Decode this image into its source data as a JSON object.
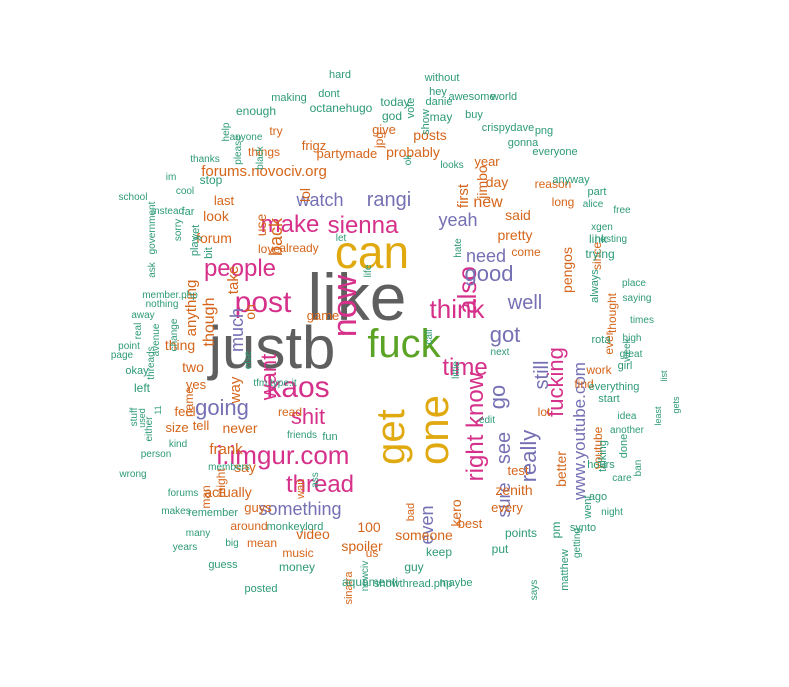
{
  "colors": {
    "gray": "#5f5f5f",
    "pink": "#d6318a",
    "orange": "#d5651a",
    "teal": "#2e9a78",
    "purple": "#7570b3",
    "gold": "#e0a910",
    "green": "#5aa324",
    "background": "#ffffff"
  },
  "words": [
    {
      "text": "like",
      "color": "gray"
    },
    {
      "text": "justb",
      "color": "gray"
    },
    {
      "text": "can",
      "color": "gold"
    },
    {
      "text": "get",
      "color": "gold"
    },
    {
      "text": "one",
      "color": "gold"
    },
    {
      "text": "fuck",
      "color": "green"
    },
    {
      "text": "now",
      "color": "pink"
    },
    {
      "text": "post",
      "color": "pink"
    },
    {
      "text": "kaos",
      "color": "pink"
    },
    {
      "text": "people",
      "color": "pink"
    },
    {
      "text": "make",
      "color": "pink"
    },
    {
      "text": "sienna",
      "color": "pink"
    },
    {
      "text": "also",
      "color": "pink"
    },
    {
      "text": "think",
      "color": "pink"
    },
    {
      "text": "time",
      "color": "pink"
    },
    {
      "text": "know",
      "color": "pink"
    },
    {
      "text": "right",
      "color": "pink"
    },
    {
      "text": "shit",
      "color": "pink"
    },
    {
      "text": "want",
      "color": "pink"
    },
    {
      "text": "thread",
      "color": "pink"
    },
    {
      "text": "i.imgur.com",
      "color": "pink"
    },
    {
      "text": "fucking",
      "color": "pink"
    },
    {
      "text": "going",
      "color": "purple"
    },
    {
      "text": "good",
      "color": "purple"
    },
    {
      "text": "got",
      "color": "purple"
    },
    {
      "text": "well",
      "color": "purple"
    },
    {
      "text": "really",
      "color": "purple"
    },
    {
      "text": "still",
      "color": "purple"
    },
    {
      "text": "see",
      "color": "purple"
    },
    {
      "text": "go",
      "color": "purple"
    },
    {
      "text": "watch",
      "color": "purple"
    },
    {
      "text": "rangi",
      "color": "purple"
    },
    {
      "text": "yeah",
      "color": "purple"
    },
    {
      "text": "need",
      "color": "purple"
    },
    {
      "text": "something",
      "color": "purple"
    },
    {
      "text": "even",
      "color": "purple"
    },
    {
      "text": "sure",
      "color": "purple"
    },
    {
      "text": "much",
      "color": "purple"
    },
    {
      "text": "www.youtube.com",
      "color": "purple"
    },
    {
      "text": "forums.novociv.org",
      "color": "orange"
    },
    {
      "text": "back",
      "color": "orange"
    },
    {
      "text": "use",
      "color": "orange"
    },
    {
      "text": "lol",
      "color": "orange"
    },
    {
      "text": "first",
      "color": "orange"
    },
    {
      "text": "new",
      "color": "orange"
    },
    {
      "text": "day",
      "color": "orange"
    },
    {
      "text": "jimbo",
      "color": "orange"
    },
    {
      "text": "said",
      "color": "orange"
    },
    {
      "text": "pretty",
      "color": "orange"
    },
    {
      "text": "pengos",
      "color": "orange"
    },
    {
      "text": "forum",
      "color": "orange"
    },
    {
      "text": "look",
      "color": "orange"
    },
    {
      "text": "last",
      "color": "orange"
    },
    {
      "text": "take",
      "color": "orange"
    },
    {
      "text": "oh",
      "color": "orange"
    },
    {
      "text": "though",
      "color": "orange"
    },
    {
      "text": "anything",
      "color": "orange"
    },
    {
      "text": "way",
      "color": "orange"
    },
    {
      "text": "thing",
      "color": "orange"
    },
    {
      "text": "two",
      "color": "orange"
    },
    {
      "text": "yes",
      "color": "orange"
    },
    {
      "text": "never",
      "color": "orange"
    },
    {
      "text": "frank",
      "color": "orange"
    },
    {
      "text": "say",
      "color": "orange"
    },
    {
      "text": "actually",
      "color": "orange"
    },
    {
      "text": "guys",
      "color": "orange"
    },
    {
      "text": "video",
      "color": "orange"
    },
    {
      "text": "100",
      "color": "orange"
    },
    {
      "text": "spoiler",
      "color": "orange"
    },
    {
      "text": "someone",
      "color": "orange"
    },
    {
      "text": "best",
      "color": "orange"
    },
    {
      "text": "kero",
      "color": "orange"
    },
    {
      "text": "zenith",
      "color": "orange"
    },
    {
      "text": "every",
      "color": "orange"
    },
    {
      "text": "better",
      "color": "orange"
    },
    {
      "text": "test",
      "color": "orange"
    },
    {
      "text": "lot",
      "color": "orange"
    },
    {
      "text": "find",
      "color": "orange"
    },
    {
      "text": "work",
      "color": "orange"
    },
    {
      "text": "ever",
      "color": "orange"
    },
    {
      "text": "youtube",
      "color": "orange"
    },
    {
      "text": "thought",
      "color": "orange"
    },
    {
      "text": "since",
      "color": "orange"
    },
    {
      "text": "long",
      "color": "orange"
    },
    {
      "text": "reason",
      "color": "orange"
    },
    {
      "text": "year",
      "color": "orange"
    },
    {
      "text": "posts",
      "color": "orange"
    },
    {
      "text": "probably",
      "color": "orange"
    },
    {
      "text": "made",
      "color": "orange"
    },
    {
      "text": "give",
      "color": "orange"
    },
    {
      "text": "party",
      "color": "orange"
    },
    {
      "text": "frigz",
      "color": "orange"
    },
    {
      "text": "things",
      "color": "orange"
    },
    {
      "text": "game",
      "color": "orange"
    },
    {
      "text": "feel",
      "color": "orange"
    },
    {
      "text": "size",
      "color": "orange"
    },
    {
      "text": "tell",
      "color": "orange"
    },
    {
      "text": "man",
      "color": "orange"
    },
    {
      "text": "might",
      "color": "orange"
    },
    {
      "text": "name",
      "color": "orange"
    },
    {
      "text": "around",
      "color": "orange"
    },
    {
      "text": "mean",
      "color": "orange"
    },
    {
      "text": "music",
      "color": "orange"
    },
    {
      "text": "come",
      "color": "orange"
    },
    {
      "text": "jpg",
      "color": "orange"
    },
    {
      "text": "bad",
      "color": "orange"
    },
    {
      "text": "wait",
      "color": "orange"
    },
    {
      "text": "us",
      "color": "orange"
    },
    {
      "text": "sinatra",
      "color": "orange"
    },
    {
      "text": "already",
      "color": "orange"
    },
    {
      "text": "love",
      "color": "orange"
    },
    {
      "text": "read",
      "color": "orange"
    },
    {
      "text": "try",
      "color": "orange"
    },
    {
      "text": "enough",
      "color": "teal"
    },
    {
      "text": "octanehugo",
      "color": "teal"
    },
    {
      "text": "dont",
      "color": "teal"
    },
    {
      "text": "making",
      "color": "teal"
    },
    {
      "text": "today",
      "color": "teal"
    },
    {
      "text": "god",
      "color": "teal"
    },
    {
      "text": "vote",
      "color": "teal"
    },
    {
      "text": "danie",
      "color": "teal"
    },
    {
      "text": "may",
      "color": "teal"
    },
    {
      "text": "hey",
      "color": "teal"
    },
    {
      "text": "show",
      "color": "teal"
    },
    {
      "text": "without",
      "color": "teal"
    },
    {
      "text": "awesome",
      "color": "teal"
    },
    {
      "text": "world",
      "color": "teal"
    },
    {
      "text": "buy",
      "color": "teal"
    },
    {
      "text": "crispydave",
      "color": "teal"
    },
    {
      "text": "gonna",
      "color": "teal"
    },
    {
      "text": "png",
      "color": "teal"
    },
    {
      "text": "everyone",
      "color": "teal"
    },
    {
      "text": "anyway",
      "color": "teal"
    },
    {
      "text": "part",
      "color": "teal"
    },
    {
      "text": "alice",
      "color": "teal"
    },
    {
      "text": "free",
      "color": "teal"
    },
    {
      "text": "xgen",
      "color": "teal"
    },
    {
      "text": "link",
      "color": "teal"
    },
    {
      "text": "trying",
      "color": "teal"
    },
    {
      "text": "always",
      "color": "teal"
    },
    {
      "text": "place",
      "color": "teal"
    },
    {
      "text": "saying",
      "color": "teal"
    },
    {
      "text": "times",
      "color": "teal"
    },
    {
      "text": "high",
      "color": "teal"
    },
    {
      "text": "great",
      "color": "teal"
    },
    {
      "text": "week",
      "color": "teal"
    },
    {
      "text": "girl",
      "color": "teal"
    },
    {
      "text": "everything",
      "color": "teal"
    },
    {
      "text": "start",
      "color": "teal"
    },
    {
      "text": "done",
      "color": "teal"
    },
    {
      "text": "idea",
      "color": "teal"
    },
    {
      "text": "another",
      "color": "teal"
    },
    {
      "text": "ban",
      "color": "teal"
    },
    {
      "text": "care",
      "color": "teal"
    },
    {
      "text": "hours",
      "color": "teal"
    },
    {
      "text": "ago",
      "color": "teal"
    },
    {
      "text": "night",
      "color": "teal"
    },
    {
      "text": "talking",
      "color": "teal"
    },
    {
      "text": "went",
      "color": "teal"
    },
    {
      "text": "synto",
      "color": "teal"
    },
    {
      "text": "getting",
      "color": "teal"
    },
    {
      "text": "matthew",
      "color": "teal"
    },
    {
      "text": "pm",
      "color": "teal"
    },
    {
      "text": "points",
      "color": "teal"
    },
    {
      "text": "put",
      "color": "teal"
    },
    {
      "text": "keep",
      "color": "teal"
    },
    {
      "text": "guy",
      "color": "teal"
    },
    {
      "text": "maybe",
      "color": "teal"
    },
    {
      "text": "showthread.php",
      "color": "teal"
    },
    {
      "text": "aquamenti",
      "color": "teal"
    },
    {
      "text": "money",
      "color": "teal"
    },
    {
      "text": "guess",
      "color": "teal"
    },
    {
      "text": "posted",
      "color": "teal"
    },
    {
      "text": "monkeylord",
      "color": "teal"
    },
    {
      "text": "remember",
      "color": "teal"
    },
    {
      "text": "big",
      "color": "teal"
    },
    {
      "text": "many",
      "color": "teal"
    },
    {
      "text": "years",
      "color": "teal"
    },
    {
      "text": "makes",
      "color": "teal"
    },
    {
      "text": "forums",
      "color": "teal"
    },
    {
      "text": "wrong",
      "color": "teal"
    },
    {
      "text": "person",
      "color": "teal"
    },
    {
      "text": "kind",
      "color": "teal"
    },
    {
      "text": "members",
      "color": "teal"
    },
    {
      "text": "either",
      "color": "teal"
    },
    {
      "text": "used",
      "color": "teal"
    },
    {
      "text": "11",
      "color": "teal"
    },
    {
      "text": "stuff",
      "color": "teal"
    },
    {
      "text": "left",
      "color": "teal"
    },
    {
      "text": "okay",
      "color": "teal"
    },
    {
      "text": "threads",
      "color": "teal"
    },
    {
      "text": "page",
      "color": "teal"
    },
    {
      "text": "point",
      "color": "teal"
    },
    {
      "text": "real",
      "color": "teal"
    },
    {
      "text": "away",
      "color": "teal"
    },
    {
      "text": "avenue",
      "color": "teal"
    },
    {
      "text": "change",
      "color": "teal"
    },
    {
      "text": "member.php",
      "color": "teal"
    },
    {
      "text": "ask",
      "color": "teal"
    },
    {
      "text": "nothing",
      "color": "teal"
    },
    {
      "text": "school",
      "color": "teal"
    },
    {
      "text": "government",
      "color": "teal"
    },
    {
      "text": "instead",
      "color": "teal"
    },
    {
      "text": "sorry",
      "color": "teal"
    },
    {
      "text": "far",
      "color": "teal"
    },
    {
      "text": "yet",
      "color": "teal"
    },
    {
      "text": "play",
      "color": "teal"
    },
    {
      "text": "bit",
      "color": "teal"
    },
    {
      "text": "im",
      "color": "teal"
    },
    {
      "text": "cool",
      "color": "teal"
    },
    {
      "text": "thanks",
      "color": "teal"
    },
    {
      "text": "stop",
      "color": "teal"
    },
    {
      "text": "please",
      "color": "teal"
    },
    {
      "text": "anyone",
      "color": "teal"
    },
    {
      "text": "black",
      "color": "teal"
    },
    {
      "text": "help",
      "color": "teal"
    },
    {
      "text": "else",
      "color": "teal"
    },
    {
      "text": "tfm.type.it",
      "color": "teal"
    },
    {
      "text": "friends",
      "color": "teal"
    },
    {
      "text": "fun",
      "color": "teal"
    },
    {
      "text": "ass",
      "color": "teal"
    },
    {
      "text": "let",
      "color": "teal"
    },
    {
      "text": "life",
      "color": "teal"
    },
    {
      "text": "call",
      "color": "teal"
    },
    {
      "text": "little",
      "color": "teal"
    },
    {
      "text": "next",
      "color": "teal"
    },
    {
      "text": "hate",
      "color": "teal"
    },
    {
      "text": "looks",
      "color": "teal"
    },
    {
      "text": "edit",
      "color": "teal"
    },
    {
      "text": "ok",
      "color": "teal"
    },
    {
      "text": "least",
      "color": "teal"
    },
    {
      "text": "list",
      "color": "teal"
    },
    {
      "text": "gets",
      "color": "teal"
    },
    {
      "text": "newciv",
      "color": "teal"
    },
    {
      "text": "says",
      "color": "teal"
    },
    {
      "text": "rota",
      "color": "teal"
    },
    {
      "text": "hosting",
      "color": "teal"
    },
    {
      "text": "hard",
      "color": "teal"
    },
    {
      "text": "old",
      "color": "teal"
    },
    {
      "text": "school",
      "color": "teal"
    }
  ]
}
